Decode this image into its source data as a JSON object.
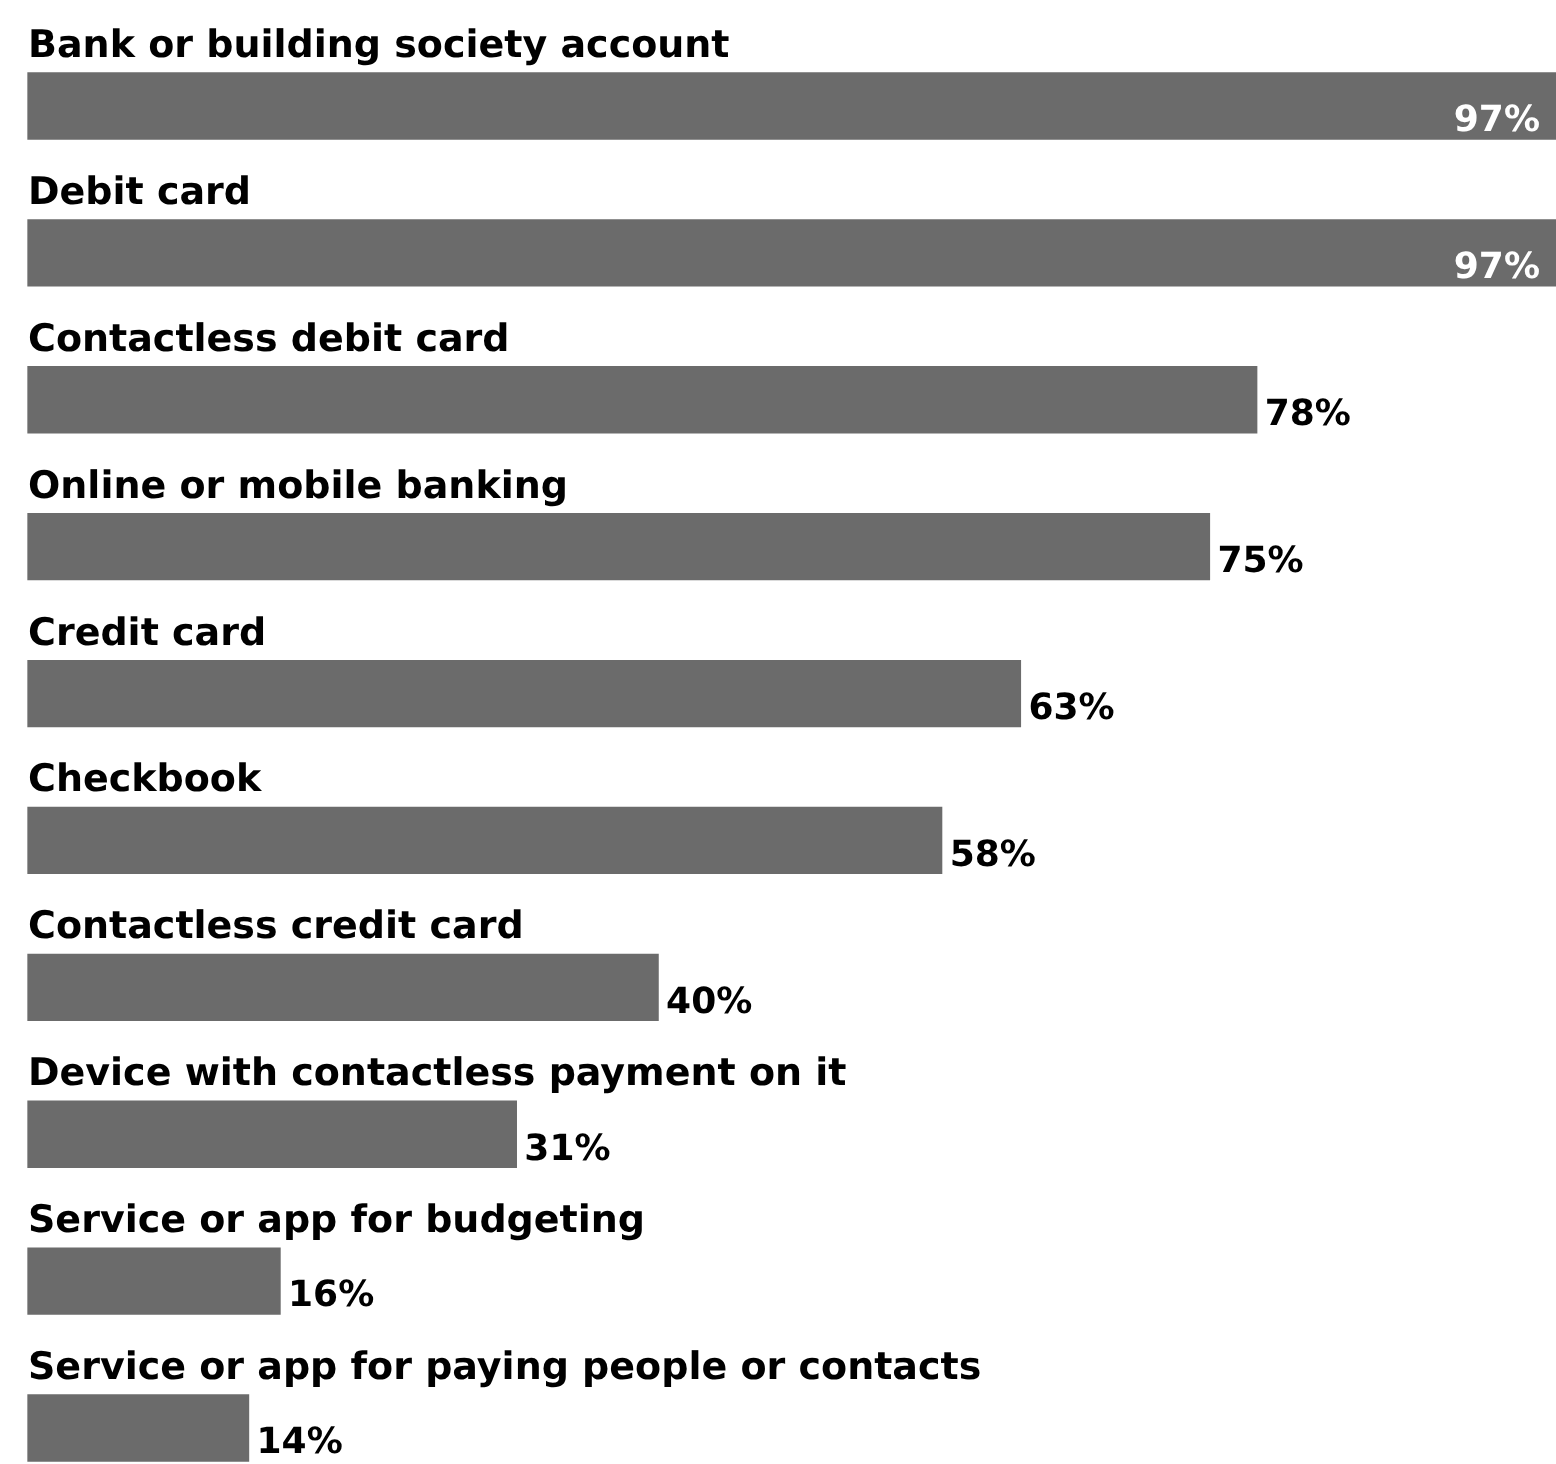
{
  "chart_data": {
    "type": "bar",
    "orientation": "horizontal",
    "categories": [
      "Bank or building society account",
      "Debit card",
      "Contactless debit card",
      "Online or mobile banking",
      "Credit card",
      "Checkbook",
      "Contactless credit card",
      "Device with contactless payment on it",
      "Service or app for budgeting",
      "Service or app for paying people or contacts"
    ],
    "values": [
      97,
      97,
      78,
      75,
      63,
      58,
      40,
      31,
      16,
      14
    ],
    "value_labels": [
      "97%",
      "97%",
      "78%",
      "75%",
      "63%",
      "58%",
      "40%",
      "31%",
      "16%",
      "14%"
    ],
    "color": "#6b6b6b",
    "xlim": [
      0,
      97
    ],
    "legend": false
  }
}
